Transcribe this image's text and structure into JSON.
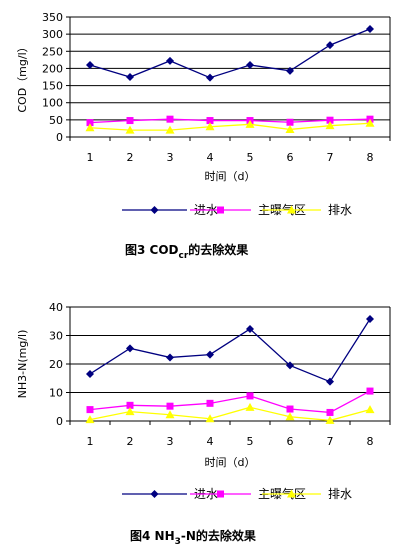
{
  "chart_data": [
    {
      "type": "line",
      "caption": {
        "fig": "图3",
        "pre": "COD",
        "sub": "cr",
        "post": "的去除效果"
      },
      "xlabel": "时间（d）",
      "ylabel": "COD（mg/l）",
      "categories": [
        "1",
        "2",
        "3",
        "4",
        "5",
        "6",
        "7",
        "8"
      ],
      "ylim": [
        0,
        350
      ],
      "yticks": [
        0,
        50,
        100,
        150,
        200,
        250,
        300,
        350
      ],
      "grid": true,
      "legend_position": "bottom",
      "series": [
        {
          "name": "进水",
          "color": "#000080",
          "marker": "diamond",
          "values": [
            210,
            175,
            222,
            173,
            210,
            193,
            268,
            315
          ]
        },
        {
          "name": "主曝气区",
          "color": "#ff00ff",
          "marker": "square",
          "values": [
            42,
            48,
            52,
            48,
            48,
            43,
            49,
            52
          ]
        },
        {
          "name": "排水",
          "color": "#ffff00",
          "marker": "triangle",
          "values": [
            27,
            20,
            20,
            30,
            37,
            22,
            33,
            40
          ]
        }
      ]
    },
    {
      "type": "line",
      "caption": {
        "fig": "图4",
        "pre": "NH",
        "sub": "3",
        "post": "-N的去除效果"
      },
      "xlabel": "时间（d）",
      "ylabel": "NH3-N(mg/l)",
      "categories": [
        "1",
        "2",
        "3",
        "4",
        "5",
        "6",
        "7",
        "8"
      ],
      "ylim": [
        0,
        40
      ],
      "yticks": [
        0,
        10,
        20,
        30,
        40
      ],
      "grid": true,
      "legend_position": "bottom",
      "series": [
        {
          "name": "进水",
          "color": "#000080",
          "marker": "diamond",
          "values": [
            16.5,
            25.5,
            22.3,
            23.3,
            32.3,
            19.5,
            13.8,
            35.8
          ]
        },
        {
          "name": "主曝气区",
          "color": "#ff00ff",
          "marker": "square",
          "values": [
            4,
            5.5,
            5.2,
            6.2,
            8.8,
            4.2,
            3,
            10.5
          ]
        },
        {
          "name": "排水",
          "color": "#ffff00",
          "marker": "triangle",
          "values": [
            0.5,
            3.3,
            2.2,
            0.8,
            4.8,
            1.5,
            0.2,
            4
          ]
        }
      ]
    }
  ]
}
